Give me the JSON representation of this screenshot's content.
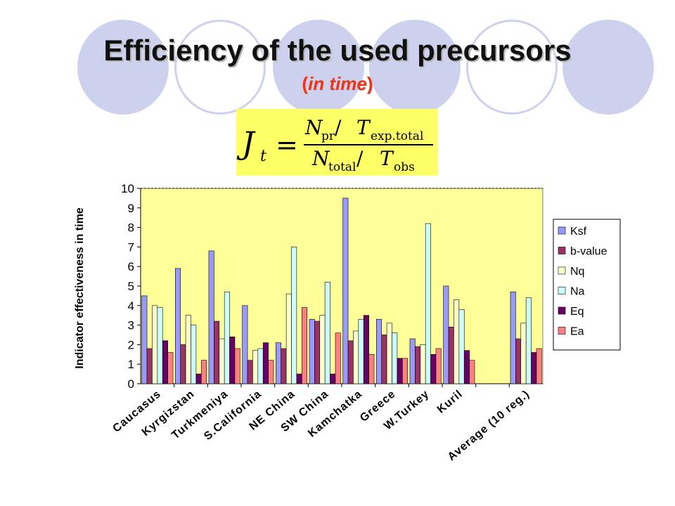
{
  "slide": {
    "title": "Efficiency of the used precursors",
    "subtitle_open": "(",
    "subtitle_italic": "in time",
    "subtitle_close": ")"
  },
  "formula": {
    "lhs": "J",
    "lhs_sub": "t",
    "equals": "=",
    "num_main": "N",
    "num_sub": "pr",
    "num_slash": " /",
    "num_t": "T",
    "num_t_sub": "exp.total",
    "den_main": "N",
    "den_sub": "total",
    "den_slash": " /",
    "den_t": "T",
    "den_t_sub": "obs"
  },
  "colors": {
    "plot_background": "#ffff99",
    "Ksf": "#9999ff",
    "b-value": "#993366",
    "Nq": "#ffffcc",
    "Na": "#ccffff",
    "Eq": "#660066",
    "Ea": "#ff8080",
    "decoration": "#cdd1ee"
  },
  "chart_data": {
    "type": "bar",
    "ylabel": "Indicator effectiveness in time",
    "ylim": [
      0,
      10
    ],
    "yticks": [
      0,
      1,
      2,
      3,
      4,
      5,
      6,
      7,
      8,
      9,
      10
    ],
    "grid": "dashed top line only",
    "legend_position": "right",
    "categories": [
      "Caucasus",
      "Kyrgizstan",
      "Turkmeniya",
      "S.California",
      "NE China",
      "SW China",
      "Kamchatka",
      "Greece",
      "W.Turkey",
      "Kuril",
      "",
      "Average (10 reg.)"
    ],
    "series": [
      {
        "name": "Ksf",
        "values": [
          4.5,
          5.9,
          6.8,
          4.0,
          2.1,
          3.3,
          9.5,
          3.3,
          2.3,
          5.0,
          null,
          4.7
        ]
      },
      {
        "name": "b-value",
        "values": [
          1.8,
          2.0,
          3.2,
          1.2,
          1.8,
          3.2,
          2.2,
          2.5,
          1.9,
          2.9,
          null,
          2.3
        ]
      },
      {
        "name": "Nq",
        "values": [
          4.0,
          3.5,
          2.3,
          1.7,
          4.6,
          3.5,
          2.7,
          3.1,
          2.0,
          4.3,
          null,
          3.1
        ]
      },
      {
        "name": "Na",
        "values": [
          3.9,
          3.0,
          4.7,
          1.8,
          7.0,
          5.2,
          3.3,
          2.6,
          8.2,
          3.8,
          null,
          4.4
        ]
      },
      {
        "name": "Eq",
        "values": [
          2.2,
          0.5,
          2.4,
          2.1,
          0.5,
          0.5,
          3.5,
          1.3,
          1.5,
          1.7,
          null,
          1.6
        ]
      },
      {
        "name": "Ea",
        "values": [
          1.6,
          1.2,
          1.8,
          1.2,
          3.9,
          2.6,
          1.5,
          1.3,
          1.8,
          1.2,
          null,
          1.8
        ]
      }
    ]
  }
}
